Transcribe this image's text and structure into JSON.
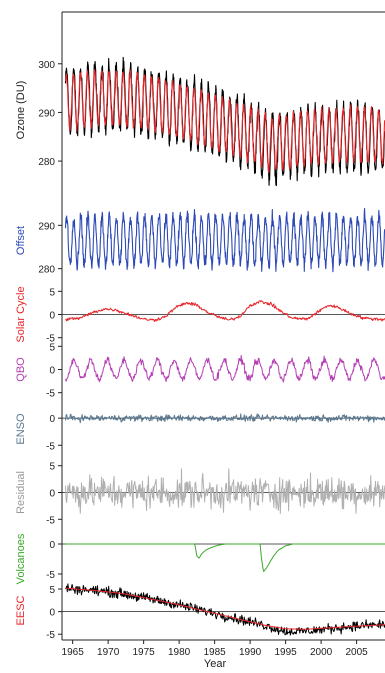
{
  "chart_data": {
    "type": "line",
    "xlabel": "Year",
    "x_ticks": [
      1965,
      1970,
      1975,
      1980,
      1985,
      1990,
      1995,
      2000,
      2005
    ],
    "xlim": [
      1963.5,
      2009
    ],
    "grid": false,
    "panels": [
      {
        "id": "ozone",
        "ylabel": "Ozone (DU)",
        "label_color": "#222222",
        "yticks": [
          280,
          290,
          300
        ],
        "ylim": [
          272,
          309
        ],
        "series": [
          {
            "color": "#000000",
            "kind": "seasonal",
            "x": [
              1964,
              1968,
              1972,
              1976,
              1980,
              1983,
              1986,
              1990,
              1993,
              1997,
              2001,
              2005,
              2009
            ],
            "y": [
              292,
              293,
              293,
              292,
              290.5,
              289,
              287.5,
              285.5,
              282.5,
              284,
              284.5,
              285,
              284.5
            ],
            "amp": 6.5
          },
          {
            "color": "#e8262a",
            "kind": "seasonal",
            "x": [
              1964,
              1968,
              1972,
              1976,
              1980,
              1983,
              1986,
              1990,
              1993,
              1997,
              2001,
              2005,
              2009
            ],
            "y": [
              292,
              293,
              293,
              292,
              290.5,
              289,
              287.5,
              285.5,
              283.5,
              284.5,
              285,
              285.5,
              285
            ],
            "amp": 5.5
          }
        ]
      },
      {
        "id": "offset",
        "ylabel": "Offset",
        "label_color": "#2b48b5",
        "yticks": [
          280,
          290
        ],
        "ylim": [
          279,
          294
        ],
        "series": [
          {
            "color": "#2b48b5",
            "kind": "seasonal",
            "x": [
              1964,
              2009
            ],
            "y": [
              286.5,
              286.5
            ],
            "amp": 5.5
          }
        ]
      },
      {
        "id": "solar",
        "ylabel": "Solar Cycle",
        "label_color": "#e8262a",
        "yticks": [
          -5,
          0,
          5
        ],
        "ylim": [
          -5.5,
          5.5
        ],
        "zero_line": true,
        "series": [
          {
            "color": "#e8262a",
            "kind": "line",
            "x": [
              1964,
              1966,
              1968,
              1969.5,
              1971,
              1973,
              1975,
              1976.5,
              1978,
              1979.5,
              1981,
              1982.5,
              1984,
              1985.5,
              1987,
              1988.5,
              1990,
              1991.5,
              1993,
              1994.5,
              1996,
              1998,
              1999.5,
              2001,
              2002.5,
              2004,
              2006,
              2009
            ],
            "y": [
              -1,
              -0.8,
              0.5,
              1.2,
              1.0,
              0,
              -1,
              -1.2,
              -0.5,
              1.5,
              2.5,
              2.0,
              0.5,
              -0.5,
              -1.2,
              -0.5,
              2.0,
              2.8,
              2.2,
              0.5,
              -0.8,
              -1.0,
              0.5,
              2.0,
              1.5,
              0.3,
              -0.8,
              -1.1
            ]
          }
        ]
      },
      {
        "id": "qbo",
        "ylabel": "QBO",
        "label_color": "#b43fb4",
        "yticks": [
          -5,
          0,
          5
        ],
        "ylim": [
          -5.5,
          5.5
        ],
        "zero_line": false,
        "series": [
          {
            "color": "#b43fb4",
            "kind": "oscillation",
            "x": [
              1964,
              2009
            ],
            "y": [
              0,
              0
            ],
            "amp": 2.0,
            "period": 2.35,
            "noise": 0.6
          }
        ]
      },
      {
        "id": "enso",
        "ylabel": "ENSO",
        "label_color": "#5a7890",
        "yticks": [
          -5,
          0
        ],
        "ylim": [
          -5.5,
          1.5
        ],
        "zero_line": true,
        "series": [
          {
            "color": "#5a7890",
            "kind": "noise",
            "x": [
              1964,
              2009
            ],
            "y": [
              0,
              0
            ],
            "amp": 0.45
          }
        ]
      },
      {
        "id": "residual",
        "ylabel": "Residual",
        "label_color": "#9a9a9a",
        "yticks": [
          -5,
          0,
          5
        ],
        "ylim": [
          -7,
          7
        ],
        "zero_line": true,
        "series": [
          {
            "color": "#b0b0b0",
            "kind": "noise",
            "x": [
              1964,
              2009
            ],
            "y": [
              0,
              0
            ],
            "amp": 2.3
          }
        ]
      },
      {
        "id": "volcanoes",
        "ylabel": "Volcanoes",
        "label_color": "#3aa82a",
        "yticks": [
          -5,
          0
        ],
        "ylim": [
          -6.5,
          1.5
        ],
        "zero_line": true,
        "series": [
          {
            "color": "#3aa82a",
            "kind": "line",
            "x": [
              1964,
              1982.2,
              1982.5,
              1982.8,
              1983.2,
              1983.8,
              1984.5,
              1985.5,
              1986.5,
              1991.4,
              1991.6,
              1991.9,
              1992.3,
              1992.8,
              1993.3,
              1994,
              1995,
              1996,
              2009
            ],
            "y": [
              0,
              0,
              -2.0,
              -2.4,
              -1.6,
              -1.0,
              -0.6,
              -0.2,
              0,
              0,
              -2.5,
              -4.6,
              -4.0,
              -3.0,
              -2.0,
              -1.0,
              -0.3,
              0,
              0
            ]
          }
        ]
      },
      {
        "id": "eesc",
        "ylabel": "EESC",
        "label_color": "#e8262a",
        "yticks": [
          -5,
          0,
          5
        ],
        "ylim": [
          -6.5,
          7
        ],
        "zero_line": true,
        "series": [
          {
            "color": "#000000",
            "kind": "line_noise",
            "x": [
              1964,
              1968,
              1972,
              1976,
              1980,
              1984,
              1988,
              1992,
              1995,
              1998,
              2001,
              2004,
              2009
            ],
            "y": [
              5.2,
              4.7,
              4.0,
              2.8,
              1.5,
              0.0,
              -1.5,
              -3.0,
              -4.4,
              -4.3,
              -3.8,
              -3.3,
              -2.8
            ],
            "amp": 0.8
          },
          {
            "color": "#e8262a",
            "kind": "line",
            "x": [
              1964,
              1968,
              1972,
              1976,
              1980,
              1984,
              1988,
              1992,
              1995,
              1998,
              2001,
              2004,
              2009
            ],
            "y": [
              5.2,
              4.7,
              4.0,
              2.8,
              1.5,
              0.0,
              -1.5,
              -3.0,
              -3.8,
              -3.9,
              -3.6,
              -3.3,
              -2.9
            ]
          }
        ]
      }
    ]
  }
}
